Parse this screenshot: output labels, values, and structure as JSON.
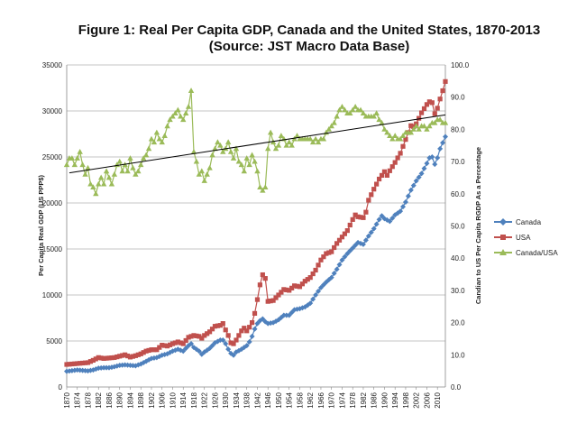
{
  "chart_data": {
    "type": "line",
    "title_line1": "Figure 1: Real Per Capita GDP, Canada and the United States, 1870-2013",
    "title_line2": "(Source: JST Macro Data Base)",
    "ylabel_left": "Per Capita Real GDP (US PPP$)",
    "ylabel_right": "Candian to US Per Capita RGDP As a Percentage",
    "ylim_left": [
      0,
      35000
    ],
    "ylim_right": [
      0,
      100
    ],
    "yticks_left": [
      "0",
      "5000",
      "10000",
      "15000",
      "20000",
      "25000",
      "30000",
      "35000"
    ],
    "yticks_right": [
      "0.0",
      "10.0",
      "20.0",
      "30.0",
      "40.0",
      "50.0",
      "60.0",
      "70.0",
      "80.0",
      "90.0",
      "100.0"
    ],
    "xticks": [
      "1870",
      "1874",
      "1878",
      "1882",
      "1886",
      "1890",
      "1894",
      "1898",
      "1902",
      "1906",
      "1910",
      "1914",
      "1918",
      "1922",
      "1926",
      "1930",
      "1934",
      "1938",
      "1942",
      "1946",
      "1950",
      "1954",
      "1958",
      "1962",
      "1966",
      "1970",
      "1974",
      "1978",
      "1982",
      "1986",
      "1990",
      "1994",
      "1998",
      "2002",
      "2006",
      "2010"
    ],
    "x_start": 1870,
    "x_end": 2013,
    "colors": {
      "canada": "#4f81bd",
      "usa": "#c0504d",
      "ratio": "#9bbb59",
      "trend": "#000000",
      "grid": "#b0b0b0"
    },
    "legend": [
      "Canada",
      "USA",
      "Canada/USA"
    ],
    "canada_anchors": [
      [
        1870,
        1700
      ],
      [
        1872,
        1780
      ],
      [
        1874,
        1850
      ],
      [
        1876,
        1800
      ],
      [
        1878,
        1750
      ],
      [
        1880,
        1850
      ],
      [
        1882,
        2050
      ],
      [
        1884,
        2100
      ],
      [
        1886,
        2100
      ],
      [
        1888,
        2200
      ],
      [
        1890,
        2350
      ],
      [
        1892,
        2400
      ],
      [
        1894,
        2350
      ],
      [
        1896,
        2300
      ],
      [
        1898,
        2500
      ],
      [
        1900,
        2800
      ],
      [
        1902,
        3100
      ],
      [
        1904,
        3200
      ],
      [
        1906,
        3450
      ],
      [
        1908,
        3600
      ],
      [
        1910,
        3900
      ],
      [
        1912,
        4100
      ],
      [
        1914,
        3900
      ],
      [
        1916,
        4500
      ],
      [
        1917,
        4700
      ],
      [
        1918,
        4300
      ],
      [
        1920,
        3900
      ],
      [
        1921,
        3550
      ],
      [
        1922,
        3800
      ],
      [
        1924,
        4200
      ],
      [
        1926,
        4800
      ],
      [
        1928,
        5100
      ],
      [
        1929,
        5100
      ],
      [
        1930,
        4700
      ],
      [
        1931,
        4100
      ],
      [
        1932,
        3650
      ],
      [
        1933,
        3450
      ],
      [
        1934,
        3800
      ],
      [
        1936,
        4100
      ],
      [
        1938,
        4500
      ],
      [
        1939,
        4900
      ],
      [
        1940,
        5500
      ],
      [
        1941,
        6300
      ],
      [
        1942,
        6900
      ],
      [
        1943,
        7200
      ],
      [
        1944,
        7400
      ],
      [
        1945,
        7100
      ],
      [
        1946,
        6900
      ],
      [
        1948,
        7000
      ],
      [
        1950,
        7300
      ],
      [
        1952,
        7800
      ],
      [
        1954,
        7800
      ],
      [
        1956,
        8400
      ],
      [
        1958,
        8500
      ],
      [
        1960,
        8700
      ],
      [
        1962,
        9100
      ],
      [
        1964,
        10000
      ],
      [
        1966,
        10800
      ],
      [
        1968,
        11400
      ],
      [
        1970,
        11900
      ],
      [
        1972,
        12800
      ],
      [
        1974,
        13800
      ],
      [
        1976,
        14500
      ],
      [
        1978,
        15100
      ],
      [
        1980,
        15700
      ],
      [
        1982,
        15500
      ],
      [
        1984,
        16400
      ],
      [
        1986,
        17200
      ],
      [
        1988,
        18200
      ],
      [
        1989,
        18600
      ],
      [
        1990,
        18300
      ],
      [
        1992,
        18000
      ],
      [
        1994,
        18700
      ],
      [
        1996,
        19100
      ],
      [
        1998,
        20100
      ],
      [
        2000,
        21400
      ],
      [
        2002,
        22400
      ],
      [
        2004,
        23200
      ],
      [
        2006,
        24300
      ],
      [
        2007,
        24900
      ],
      [
        2008,
        25000
      ],
      [
        2009,
        24200
      ],
      [
        2010,
        24900
      ],
      [
        2011,
        25900
      ],
      [
        2013,
        27200
      ]
    ],
    "usa_anchors": [
      [
        1870,
        2450
      ],
      [
        1872,
        2500
      ],
      [
        1874,
        2550
      ],
      [
        1876,
        2600
      ],
      [
        1878,
        2650
      ],
      [
        1880,
        2900
      ],
      [
        1882,
        3200
      ],
      [
        1884,
        3100
      ],
      [
        1886,
        3150
      ],
      [
        1888,
        3200
      ],
      [
        1890,
        3350
      ],
      [
        1892,
        3500
      ],
      [
        1894,
        3250
      ],
      [
        1896,
        3400
      ],
      [
        1898,
        3600
      ],
      [
        1900,
        3900
      ],
      [
        1902,
        4050
      ],
      [
        1904,
        4050
      ],
      [
        1906,
        4550
      ],
      [
        1908,
        4450
      ],
      [
        1910,
        4700
      ],
      [
        1912,
        4900
      ],
      [
        1914,
        4700
      ],
      [
        1916,
        5400
      ],
      [
        1918,
        5600
      ],
      [
        1920,
        5500
      ],
      [
        1921,
        5300
      ],
      [
        1922,
        5600
      ],
      [
        1924,
        6000
      ],
      [
        1926,
        6600
      ],
      [
        1928,
        6700
      ],
      [
        1929,
        6900
      ],
      [
        1930,
        6200
      ],
      [
        1931,
        5600
      ],
      [
        1932,
        4800
      ],
      [
        1933,
        4700
      ],
      [
        1934,
        5100
      ],
      [
        1936,
        6100
      ],
      [
        1937,
        6400
      ],
      [
        1938,
        6100
      ],
      [
        1939,
        6500
      ],
      [
        1940,
        7000
      ],
      [
        1941,
        8000
      ],
      [
        1942,
        9500
      ],
      [
        1943,
        11100
      ],
      [
        1944,
        12200
      ],
      [
        1945,
        11800
      ],
      [
        1946,
        9300
      ],
      [
        1948,
        9400
      ],
      [
        1950,
        10000
      ],
      [
        1952,
        10600
      ],
      [
        1954,
        10500
      ],
      [
        1956,
        11000
      ],
      [
        1958,
        10900
      ],
      [
        1960,
        11500
      ],
      [
        1962,
        11900
      ],
      [
        1964,
        12700
      ],
      [
        1966,
        13800
      ],
      [
        1968,
        14500
      ],
      [
        1970,
        14700
      ],
      [
        1972,
        15600
      ],
      [
        1974,
        16300
      ],
      [
        1976,
        17000
      ],
      [
        1978,
        18200
      ],
      [
        1979,
        18700
      ],
      [
        1980,
        18500
      ],
      [
        1982,
        18400
      ],
      [
        1983,
        19000
      ],
      [
        1984,
        20300
      ],
      [
        1986,
        21500
      ],
      [
        1988,
        22600
      ],
      [
        1990,
        23400
      ],
      [
        1991,
        23000
      ],
      [
        1992,
        23500
      ],
      [
        1994,
        24400
      ],
      [
        1996,
        25400
      ],
      [
        1998,
        26900
      ],
      [
        2000,
        28400
      ],
      [
        2001,
        28300
      ],
      [
        2002,
        28600
      ],
      [
        2004,
        29800
      ],
      [
        2006,
        30700
      ],
      [
        2007,
        31000
      ],
      [
        2008,
        30900
      ],
      [
        2009,
        29700
      ],
      [
        2010,
        30300
      ],
      [
        2011,
        31300
      ],
      [
        2012,
        32200
      ],
      [
        2013,
        33200
      ]
    ],
    "ratio_anchors": [
      [
        1870,
        69
      ],
      [
        1871,
        71
      ],
      [
        1872,
        71
      ],
      [
        1873,
        69
      ],
      [
        1874,
        71
      ],
      [
        1875,
        73
      ],
      [
        1876,
        69
      ],
      [
        1877,
        66
      ],
      [
        1878,
        68
      ],
      [
        1879,
        63
      ],
      [
        1880,
        62
      ],
      [
        1881,
        60
      ],
      [
        1882,
        63
      ],
      [
        1883,
        65
      ],
      [
        1884,
        63
      ],
      [
        1885,
        67
      ],
      [
        1886,
        65
      ],
      [
        1887,
        63
      ],
      [
        1888,
        66
      ],
      [
        1889,
        69
      ],
      [
        1890,
        70
      ],
      [
        1891,
        67
      ],
      [
        1892,
        69
      ],
      [
        1893,
        67
      ],
      [
        1894,
        71
      ],
      [
        1895,
        68
      ],
      [
        1896,
        66
      ],
      [
        1897,
        67
      ],
      [
        1898,
        69
      ],
      [
        1899,
        71
      ],
      [
        1900,
        72
      ],
      [
        1901,
        74
      ],
      [
        1902,
        77
      ],
      [
        1903,
        76
      ],
      [
        1904,
        79
      ],
      [
        1905,
        77
      ],
      [
        1906,
        76
      ],
      [
        1907,
        78
      ],
      [
        1908,
        81
      ],
      [
        1909,
        83
      ],
      [
        1910,
        84
      ],
      [
        1911,
        85
      ],
      [
        1912,
        86
      ],
      [
        1913,
        84
      ],
      [
        1914,
        83
      ],
      [
        1915,
        85
      ],
      [
        1916,
        87
      ],
      [
        1917,
        92
      ],
      [
        1918,
        73
      ],
      [
        1919,
        70
      ],
      [
        1920,
        66
      ],
      [
        1921,
        67
      ],
      [
        1922,
        64
      ],
      [
        1923,
        66
      ],
      [
        1924,
        68
      ],
      [
        1925,
        72
      ],
      [
        1926,
        74
      ],
      [
        1927,
        76
      ],
      [
        1928,
        75
      ],
      [
        1929,
        73
      ],
      [
        1930,
        74
      ],
      [
        1931,
        76
      ],
      [
        1932,
        73
      ],
      [
        1933,
        71
      ],
      [
        1934,
        74
      ],
      [
        1935,
        70
      ],
      [
        1936,
        69
      ],
      [
        1937,
        67
      ],
      [
        1938,
        71
      ],
      [
        1939,
        69
      ],
      [
        1940,
        72
      ],
      [
        1941,
        70
      ],
      [
        1942,
        67
      ],
      [
        1943,
        62
      ],
      [
        1944,
        61
      ],
      [
        1945,
        62
      ],
      [
        1946,
        74
      ],
      [
        1947,
        79
      ],
      [
        1948,
        76
      ],
      [
        1949,
        74
      ],
      [
        1950,
        75
      ],
      [
        1951,
        78
      ],
      [
        1952,
        77
      ],
      [
        1953,
        75
      ],
      [
        1954,
        76
      ],
      [
        1955,
        75
      ],
      [
        1956,
        77
      ],
      [
        1957,
        78
      ],
      [
        1958,
        77
      ],
      [
        1959,
        77
      ],
      [
        1960,
        77
      ],
      [
        1961,
        77
      ],
      [
        1962,
        77
      ],
      [
        1963,
        76
      ],
      [
        1964,
        77
      ],
      [
        1965,
        76
      ],
      [
        1966,
        77
      ],
      [
        1967,
        77
      ],
      [
        1968,
        79
      ],
      [
        1969,
        80
      ],
      [
        1970,
        81
      ],
      [
        1971,
        82
      ],
      [
        1972,
        84
      ],
      [
        1973,
        86
      ],
      [
        1974,
        87
      ],
      [
        1975,
        86
      ],
      [
        1976,
        85
      ],
      [
        1977,
        85
      ],
      [
        1978,
        86
      ],
      [
        1979,
        87
      ],
      [
        1980,
        86
      ],
      [
        1981,
        86
      ],
      [
        1982,
        85
      ],
      [
        1983,
        84
      ],
      [
        1984,
        84
      ],
      [
        1985,
        84
      ],
      [
        1986,
        84
      ],
      [
        1987,
        85
      ],
      [
        1988,
        83
      ],
      [
        1989,
        82
      ],
      [
        1990,
        80
      ],
      [
        1991,
        79
      ],
      [
        1992,
        78
      ],
      [
        1993,
        77
      ],
      [
        1994,
        78
      ],
      [
        1995,
        77
      ],
      [
        1996,
        77
      ],
      [
        1997,
        78
      ],
      [
        1998,
        79
      ],
      [
        1999,
        79
      ],
      [
        2000,
        79
      ],
      [
        2001,
        80
      ],
      [
        2002,
        81
      ],
      [
        2003,
        80
      ],
      [
        2004,
        81
      ],
      [
        2005,
        81
      ],
      [
        2006,
        80
      ],
      [
        2007,
        81
      ],
      [
        2008,
        82
      ],
      [
        2009,
        82
      ],
      [
        2010,
        83
      ],
      [
        2011,
        83
      ],
      [
        2012,
        82
      ],
      [
        2013,
        82
      ]
    ],
    "trend_line": {
      "x": [
        1871,
        2013
      ],
      "y": [
        66.5,
        84.5
      ]
    }
  }
}
